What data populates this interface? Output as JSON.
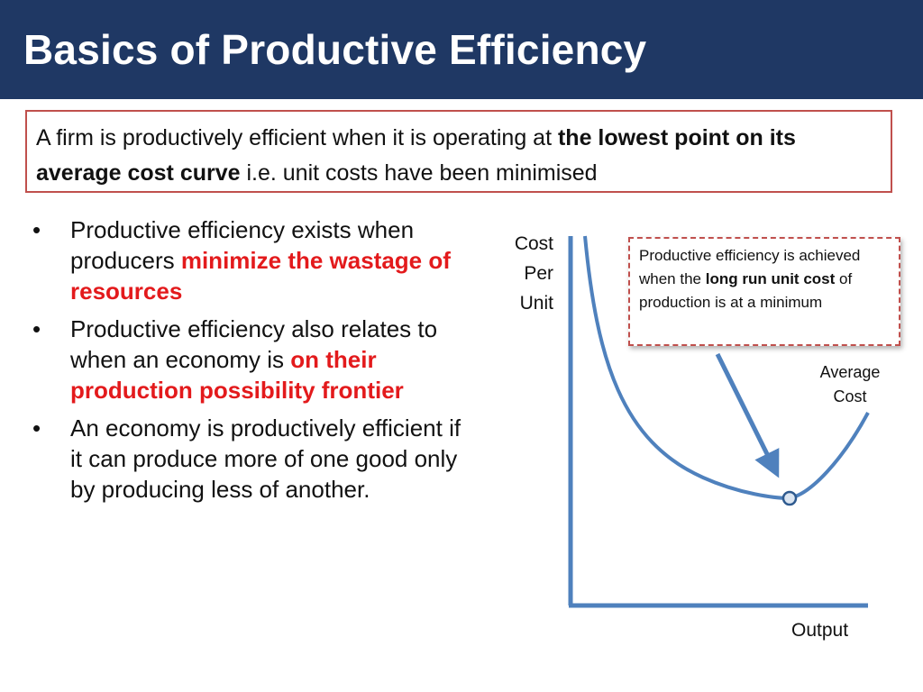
{
  "title": "Basics of Productive Efficiency",
  "definition": {
    "part1": "A firm is productively efficient when it is operating at ",
    "bold": "the lowest point on its average cost curve",
    "part2": " i.e. unit costs have been minimised"
  },
  "bullets": [
    {
      "before": "Productive efficiency exists when producers ",
      "highlight": "minimize the wastage of resources",
      "after": ""
    },
    {
      "before": "Productive efficiency also relates to when an economy is ",
      "highlight": "on their production possibility frontier",
      "after": ""
    },
    {
      "before": "An economy is productively efficient if it can produce more of one good only by producing less of another.",
      "highlight": "",
      "after": ""
    }
  ],
  "diagram": {
    "y_axis_label": [
      "Cost",
      "Per",
      "Unit"
    ],
    "x_axis_label": "Output",
    "curve_label": [
      "Average",
      "Cost"
    ],
    "callout": {
      "part1": "Productive efficiency is achieved when the ",
      "bold": "long run unit cost",
      "part2": " of production is at a minimum"
    },
    "colors": {
      "axis": "#4f81bd",
      "curve": "#4f81bd",
      "arrow": "#4f81bd",
      "highlight": "#e31a1c",
      "border": "#c0504d",
      "title_bar": "#1f3864"
    }
  }
}
